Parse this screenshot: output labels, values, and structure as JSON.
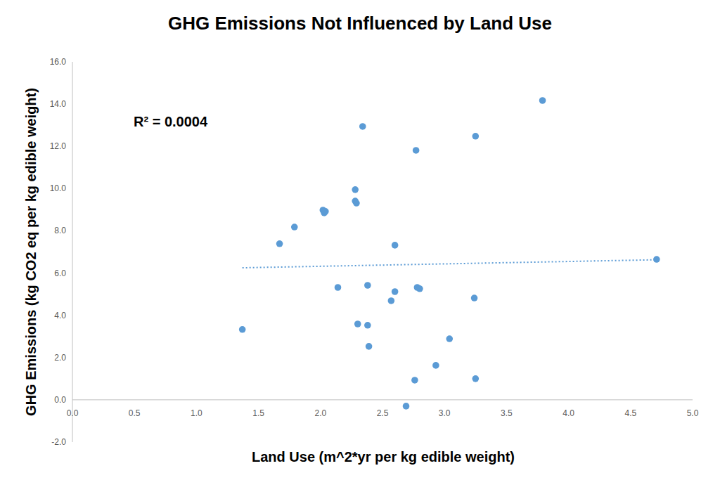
{
  "chart_data": {
    "type": "scatter",
    "title": "GHG Emissions Not Influenced by Land Use",
    "x_label": "Land Use (m^2*yr per kg edible weight)",
    "y_label": "GHG Emissions (kg CO2 eq per kg edible weight)",
    "annotations": [
      "R² = 0.0004"
    ],
    "grid": false,
    "xlim": [
      0,
      5
    ],
    "ylim": [
      -2,
      16
    ],
    "xticks": [
      {
        "value": 0,
        "label": "0.0"
      },
      {
        "value": 0.5,
        "label": "0.5"
      },
      {
        "value": 1,
        "label": "1.0"
      },
      {
        "value": 1.5,
        "label": "1.5"
      },
      {
        "value": 2,
        "label": "2.0"
      },
      {
        "value": 2.5,
        "label": "2.5"
      },
      {
        "value": 3,
        "label": "3.0"
      },
      {
        "value": 3.5,
        "label": "3.5"
      },
      {
        "value": 4,
        "label": "4.0"
      },
      {
        "value": 4.5,
        "label": "4.5"
      },
      {
        "value": 5,
        "label": "5.0"
      }
    ],
    "yticks": [
      {
        "value": -2,
        "label": "-2.0"
      },
      {
        "value": 0,
        "label": "0.0"
      },
      {
        "value": 2,
        "label": "2.0"
      },
      {
        "value": 4,
        "label": "4.0"
      },
      {
        "value": 6,
        "label": "6.0"
      },
      {
        "value": 8,
        "label": "8.0"
      },
      {
        "value": 10,
        "label": "10.0"
      },
      {
        "value": 12,
        "label": "12.0"
      },
      {
        "value": 14,
        "label": "14.0"
      },
      {
        "value": 16,
        "label": "16.0"
      }
    ],
    "series": [
      {
        "type": "scatter",
        "marker": "circle",
        "color": "#5b9bd5",
        "x": [
          1.37,
          1.67,
          1.79,
          2.02,
          2.03,
          2.04,
          2.14,
          2.28,
          2.28,
          2.29,
          2.3,
          2.34,
          2.38,
          2.38,
          2.39,
          2.57,
          2.6,
          2.6,
          2.77,
          2.69,
          2.76,
          2.78,
          2.8,
          2.93,
          3.04,
          3.24,
          3.25,
          3.25,
          3.79,
          4.71
        ],
        "values": [
          3.33,
          7.39,
          8.18,
          8.98,
          8.85,
          8.92,
          5.32,
          9.95,
          9.41,
          9.31,
          3.59,
          12.94,
          5.42,
          3.53,
          2.53,
          4.69,
          7.32,
          5.12,
          11.81,
          -0.3,
          0.93,
          5.32,
          5.26,
          1.63,
          2.89,
          4.82,
          12.48,
          1.0,
          14.17,
          6.65
        ]
      },
      {
        "type": "line",
        "line_style": "dotted",
        "color": "#5b9bd5",
        "x": [
          1.37,
          4.71
        ],
        "values": [
          6.25,
          6.63
        ]
      }
    ]
  }
}
